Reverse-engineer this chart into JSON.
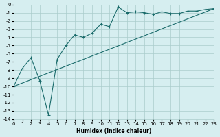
{
  "xlabel": "Humidex (Indice chaleur)",
  "ylabel": "",
  "bg_color": "#d6eef0",
  "grid_color": "#aacccc",
  "line_color": "#1a6b6b",
  "xlim": [
    0,
    23
  ],
  "ylim": [
    -14,
    0
  ],
  "xticks": [
    0,
    1,
    2,
    3,
    4,
    5,
    6,
    7,
    8,
    9,
    10,
    11,
    12,
    13,
    14,
    15,
    16,
    17,
    18,
    19,
    20,
    21,
    22,
    23
  ],
  "yticks": [
    0,
    -1,
    -2,
    -3,
    -4,
    -5,
    -6,
    -7,
    -8,
    -9,
    -10,
    -11,
    -12,
    -13,
    -14
  ],
  "line1_x": [
    0,
    1,
    2,
    3,
    4,
    5,
    6,
    7,
    8,
    9,
    10,
    11,
    12,
    13,
    14,
    15,
    16,
    17,
    18,
    19,
    20,
    21,
    22,
    23
  ],
  "line1_y": [
    -10.0,
    -7.8,
    -6.5,
    -9.3,
    -13.5,
    -6.7,
    -5.0,
    -3.7,
    -4.0,
    -3.5,
    -2.4,
    -2.7,
    -0.3,
    -1.0,
    -0.9,
    -1.0,
    -1.2,
    -0.9,
    -1.1,
    -1.1,
    -0.8,
    -0.8,
    -0.6,
    -0.5
  ],
  "line2_x": [
    0,
    23
  ],
  "line2_y": [
    -10.0,
    -0.5
  ],
  "marker": "+"
}
